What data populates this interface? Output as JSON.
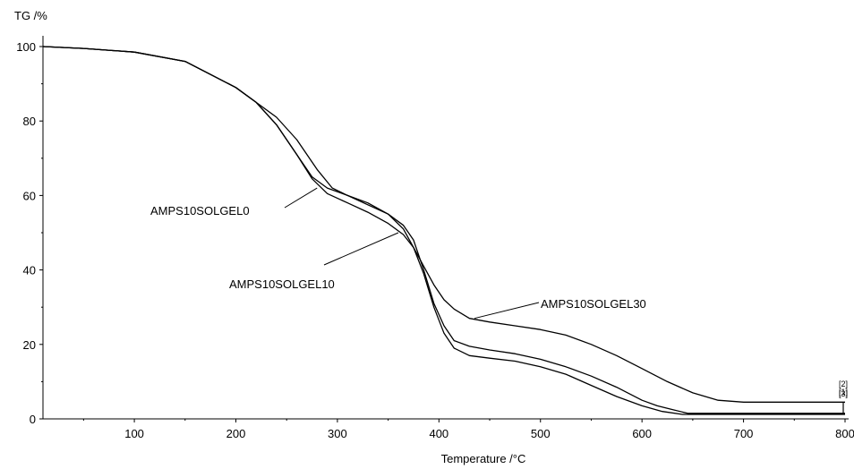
{
  "chart_data": {
    "type": "line",
    "title": "",
    "xlabel": "Temperature /°C",
    "ylabel": "TG /%",
    "xlim": [
      10,
      800
    ],
    "ylim": [
      0,
      100
    ],
    "x_ticks": [
      100,
      200,
      300,
      400,
      500,
      600,
      700,
      800
    ],
    "y_ticks": [
      0,
      20,
      40,
      60,
      80,
      100
    ],
    "grid": false,
    "legend": "none",
    "line_color": "#000000",
    "series": [
      {
        "x": [
          10,
          50,
          100,
          150,
          200,
          220,
          240,
          260,
          275,
          290,
          310,
          330,
          350,
          365,
          375,
          385,
          395,
          405,
          415,
          430,
          450,
          475,
          500,
          525,
          550,
          575,
          600,
          620,
          640,
          650,
          700,
          800
        ],
        "y": [
          100,
          99.5,
          98.5,
          96,
          89,
          85,
          79,
          71,
          64.5,
          60.5,
          58,
          55.5,
          52.5,
          49.5,
          46,
          39,
          30,
          23,
          19,
          17,
          16.3,
          15.5,
          14,
          12,
          9,
          6,
          3.5,
          2,
          1.2,
          1.2,
          1.2,
          1.2
        ]
      },
      {
        "x": [
          10,
          50,
          100,
          150,
          200,
          220,
          240,
          260,
          275,
          290,
          310,
          330,
          350,
          365,
          375,
          385,
          395,
          405,
          415,
          430,
          450,
          475,
          500,
          525,
          550,
          575,
          600,
          615,
          630,
          645,
          700,
          800
        ],
        "y": [
          100,
          99.5,
          98.5,
          96,
          89,
          85,
          79,
          71,
          65,
          62,
          60,
          57.5,
          55,
          52,
          48,
          40,
          31,
          25,
          21,
          19.5,
          18.5,
          17.5,
          16,
          14,
          11.5,
          8.5,
          5,
          3.5,
          2.5,
          1.5,
          1.5,
          1.5
        ]
      },
      {
        "x": [
          10,
          50,
          100,
          150,
          200,
          220,
          240,
          260,
          280,
          295,
          310,
          330,
          350,
          365,
          375,
          385,
          395,
          405,
          415,
          430,
          450,
          475,
          500,
          525,
          550,
          575,
          600,
          625,
          650,
          675,
          700,
          720,
          800
        ],
        "y": [
          100,
          99.5,
          98.5,
          96,
          89,
          85,
          81,
          75,
          67,
          62,
          60,
          58,
          55,
          51,
          46,
          41,
          36,
          32,
          29.5,
          27,
          26,
          25,
          24,
          22.5,
          20,
          17,
          13.5,
          10,
          7,
          5,
          4.5,
          4.5,
          4.5
        ]
      }
    ],
    "annotations": [
      {
        "text": "AMPS10SOLGEL0",
        "target": [
          280,
          62
        ]
      },
      {
        "text": "AMPS10SOLGEL10",
        "target": [
          360,
          50
        ]
      },
      {
        "text": "AMPS10SOLGEL30",
        "target": [
          435,
          27
        ]
      }
    ],
    "end_markers": [
      "[2]",
      "[1]",
      "[3]"
    ]
  }
}
